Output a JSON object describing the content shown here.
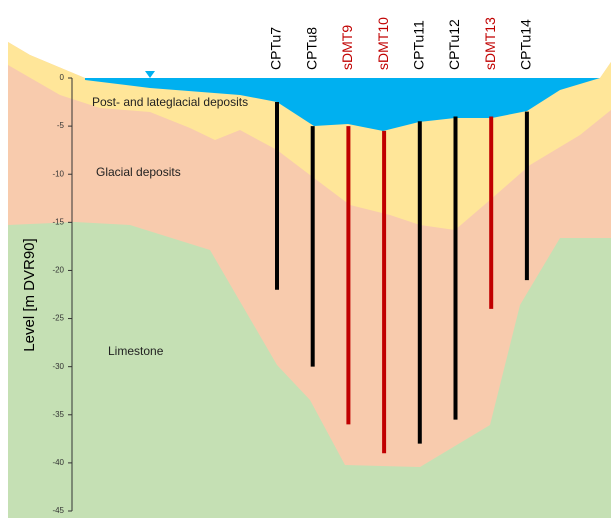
{
  "axis": {
    "label": "Level [m DVR90]",
    "ylim": [
      -45,
      0
    ],
    "yticks": [
      0,
      -5,
      -10,
      -15,
      -20,
      -25,
      -30,
      -35,
      -40,
      -45
    ]
  },
  "layers": [
    {
      "label": "Post- and lateglacial deposits"
    },
    {
      "label": "Glacial deposits"
    },
    {
      "label": "Limestone"
    }
  ],
  "boreholes": [
    {
      "name": "CPTu7",
      "color": "#000000",
      "top": -2.5,
      "bottom": -22
    },
    {
      "name": "CPTu8",
      "color": "#000000",
      "top": -5,
      "bottom": -30
    },
    {
      "name": "sDMT9",
      "color": "#c00000",
      "top": -5,
      "bottom": -36
    },
    {
      "name": "sDMT10",
      "color": "#c00000",
      "top": -5.5,
      "bottom": -39
    },
    {
      "name": "CPTu11",
      "color": "#000000",
      "top": -4.5,
      "bottom": -38
    },
    {
      "name": "CPTu12",
      "color": "#000000",
      "top": -4,
      "bottom": -35.5
    },
    {
      "name": "sDMT13",
      "color": "#c00000",
      "top": -4,
      "bottom": -24
    },
    {
      "name": "CPTu14",
      "color": "#000000",
      "top": -3.5,
      "bottom": -21
    }
  ]
}
